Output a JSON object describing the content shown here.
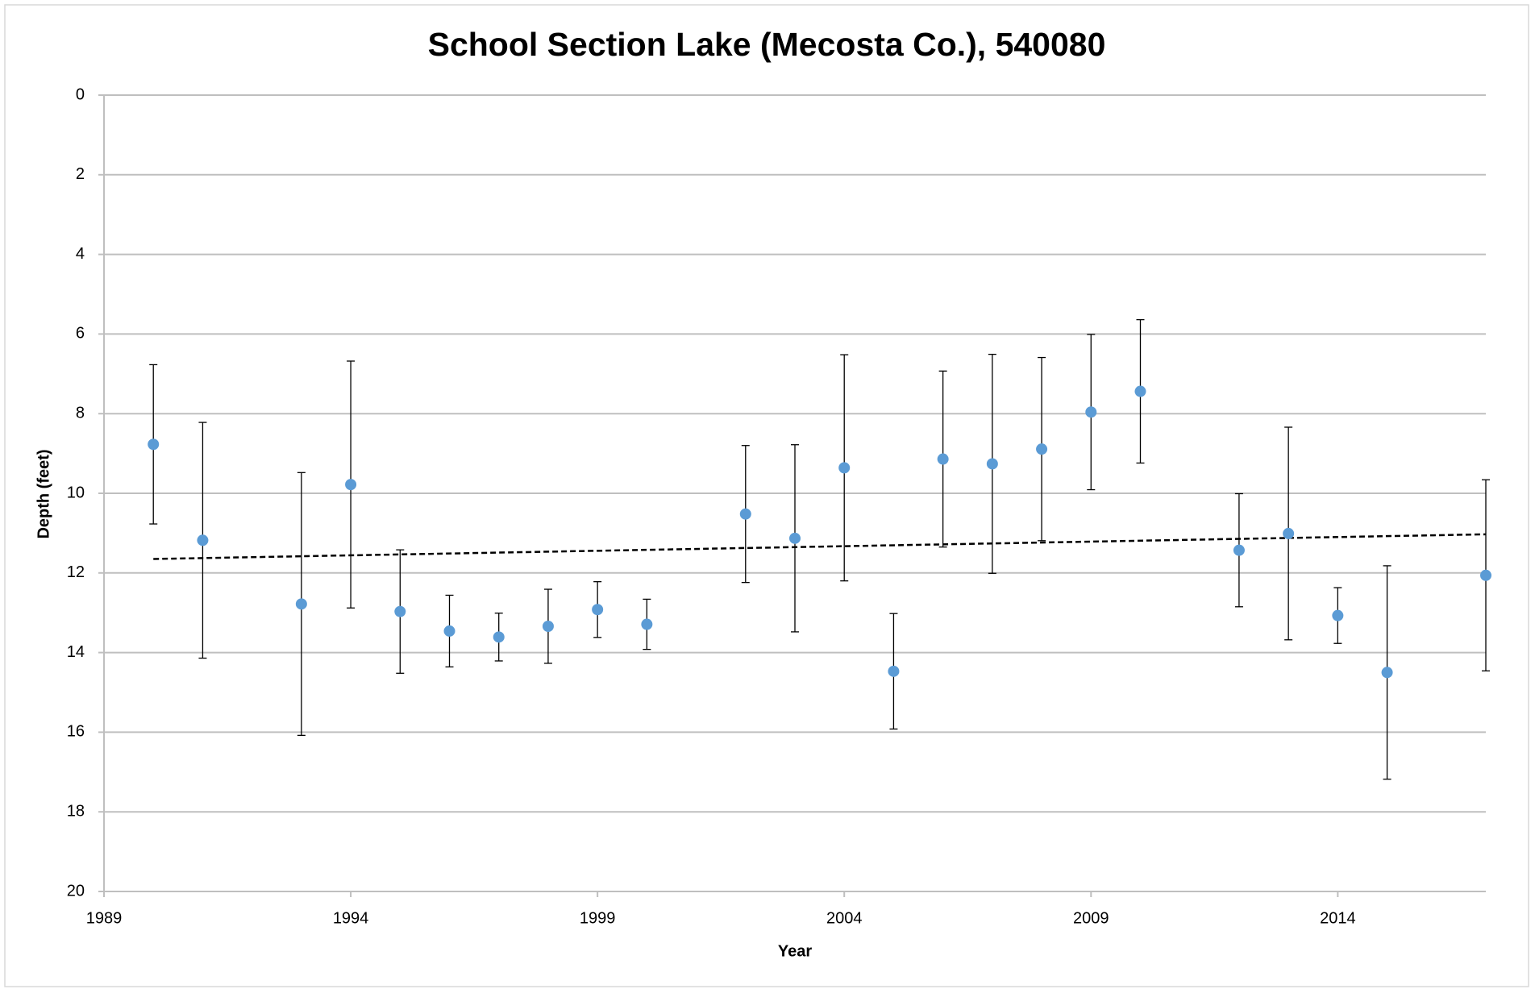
{
  "chart_data": {
    "type": "scatter",
    "title": "School Section Lake (Mecosta Co.), 540080",
    "x_label": "Year",
    "y_label": "Depth (feet)",
    "x": [
      1990,
      1991,
      1993,
      1994,
      1995,
      1996,
      1997,
      1998,
      1999,
      2000,
      2002,
      2003,
      2004,
      2005,
      2006,
      2007,
      2008,
      2009,
      2010,
      2012,
      2013,
      2014,
      2015,
      2017
    ],
    "values": [
      8.77,
      11.18,
      12.78,
      9.78,
      12.97,
      13.46,
      13.61,
      13.34,
      12.92,
      13.29,
      10.52,
      11.13,
      9.36,
      14.47,
      9.14,
      9.26,
      8.89,
      7.96,
      7.44,
      11.43,
      11.01,
      13.07,
      14.5,
      12.06
    ],
    "errors": [
      2.0,
      2.96,
      3.3,
      3.1,
      1.55,
      0.9,
      0.6,
      0.93,
      0.7,
      0.63,
      1.72,
      2.35,
      2.84,
      1.45,
      2.21,
      2.75,
      2.3,
      1.95,
      1.8,
      1.42,
      2.67,
      0.7,
      2.68,
      2.4
    ],
    "color": "#5b9bd5",
    "trendline": {
      "x": [
        1990,
        2017
      ],
      "values": [
        11.65,
        11.03
      ],
      "style": "dashed",
      "color": "#000000"
    },
    "xlim": [
      1989,
      2017
    ],
    "xticks": [
      1989,
      1994,
      1999,
      2004,
      2009,
      2014
    ],
    "ylim": [
      0,
      20
    ],
    "yticks": [
      0,
      2,
      4,
      6,
      8,
      10,
      12,
      14,
      16,
      18,
      20
    ],
    "y_inverted": true,
    "grid": true
  }
}
